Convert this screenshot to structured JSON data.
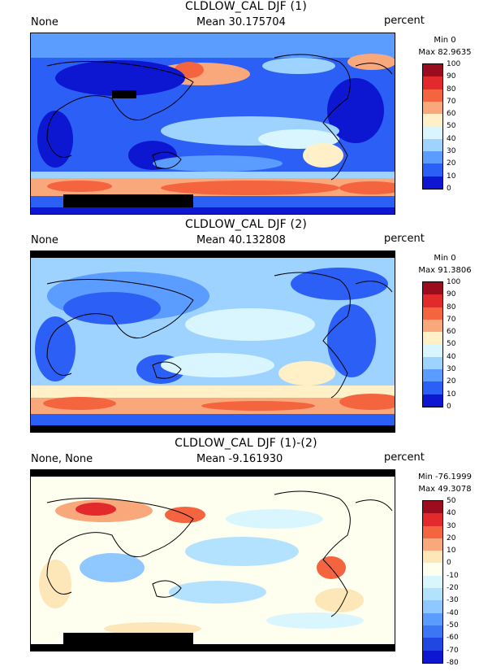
{
  "panels": [
    {
      "title": "CLDLOW_CAL DJF (1)",
      "left_label": "None",
      "mean_label": "Mean 30.175704",
      "units": "percent",
      "min_label": "Min 0",
      "max_label": "Max 82.9635",
      "colorbar_labels": [
        "100",
        "90",
        "80",
        "70",
        "60",
        "50",
        "40",
        "30",
        "20",
        "10",
        "0"
      ],
      "colors": [
        "#9b0d1e",
        "#e2292b",
        "#f4643f",
        "#f9a87c",
        "#fff0c8",
        "#d9f6ff",
        "#9fd3ff",
        "#5a9cff",
        "#2c5ff5",
        "#0d16d1"
      ]
    },
    {
      "title": "CLDLOW_CAL DJF (2)",
      "left_label": "None",
      "mean_label": "Mean 40.132808",
      "units": "percent",
      "min_label": "Min 0",
      "max_label": "Max 91.3806",
      "colorbar_labels": [
        "100",
        "90",
        "80",
        "70",
        "60",
        "50",
        "40",
        "30",
        "20",
        "10",
        "0"
      ],
      "colors": [
        "#9b0d1e",
        "#e2292b",
        "#f4643f",
        "#f9a87c",
        "#fff0c8",
        "#d9f6ff",
        "#9fd3ff",
        "#5a9cff",
        "#2c5ff5",
        "#0d16d1"
      ]
    },
    {
      "title": "CLDLOW_CAL DJF (1)-(2)",
      "left_label": "None, None",
      "mean_label": "Mean -9.161930",
      "units": "percent",
      "min_label": "Min -76.1999",
      "max_label": "Max 49.3078",
      "colorbar_labels": [
        "50",
        "40",
        "30",
        "20",
        "10",
        "0",
        "-10",
        "-20",
        "-30",
        "-40",
        "-50",
        "-60",
        "-70",
        "-80"
      ],
      "colors": [
        "#9b0d1e",
        "#e2292b",
        "#f4643f",
        "#f9a87c",
        "#fde6b8",
        "#fffff0",
        "#d9f6ff",
        "#b3e2ff",
        "#8fc8ff",
        "#5a9cff",
        "#3b77f5",
        "#2147e2",
        "#0d16d1"
      ]
    }
  ]
}
